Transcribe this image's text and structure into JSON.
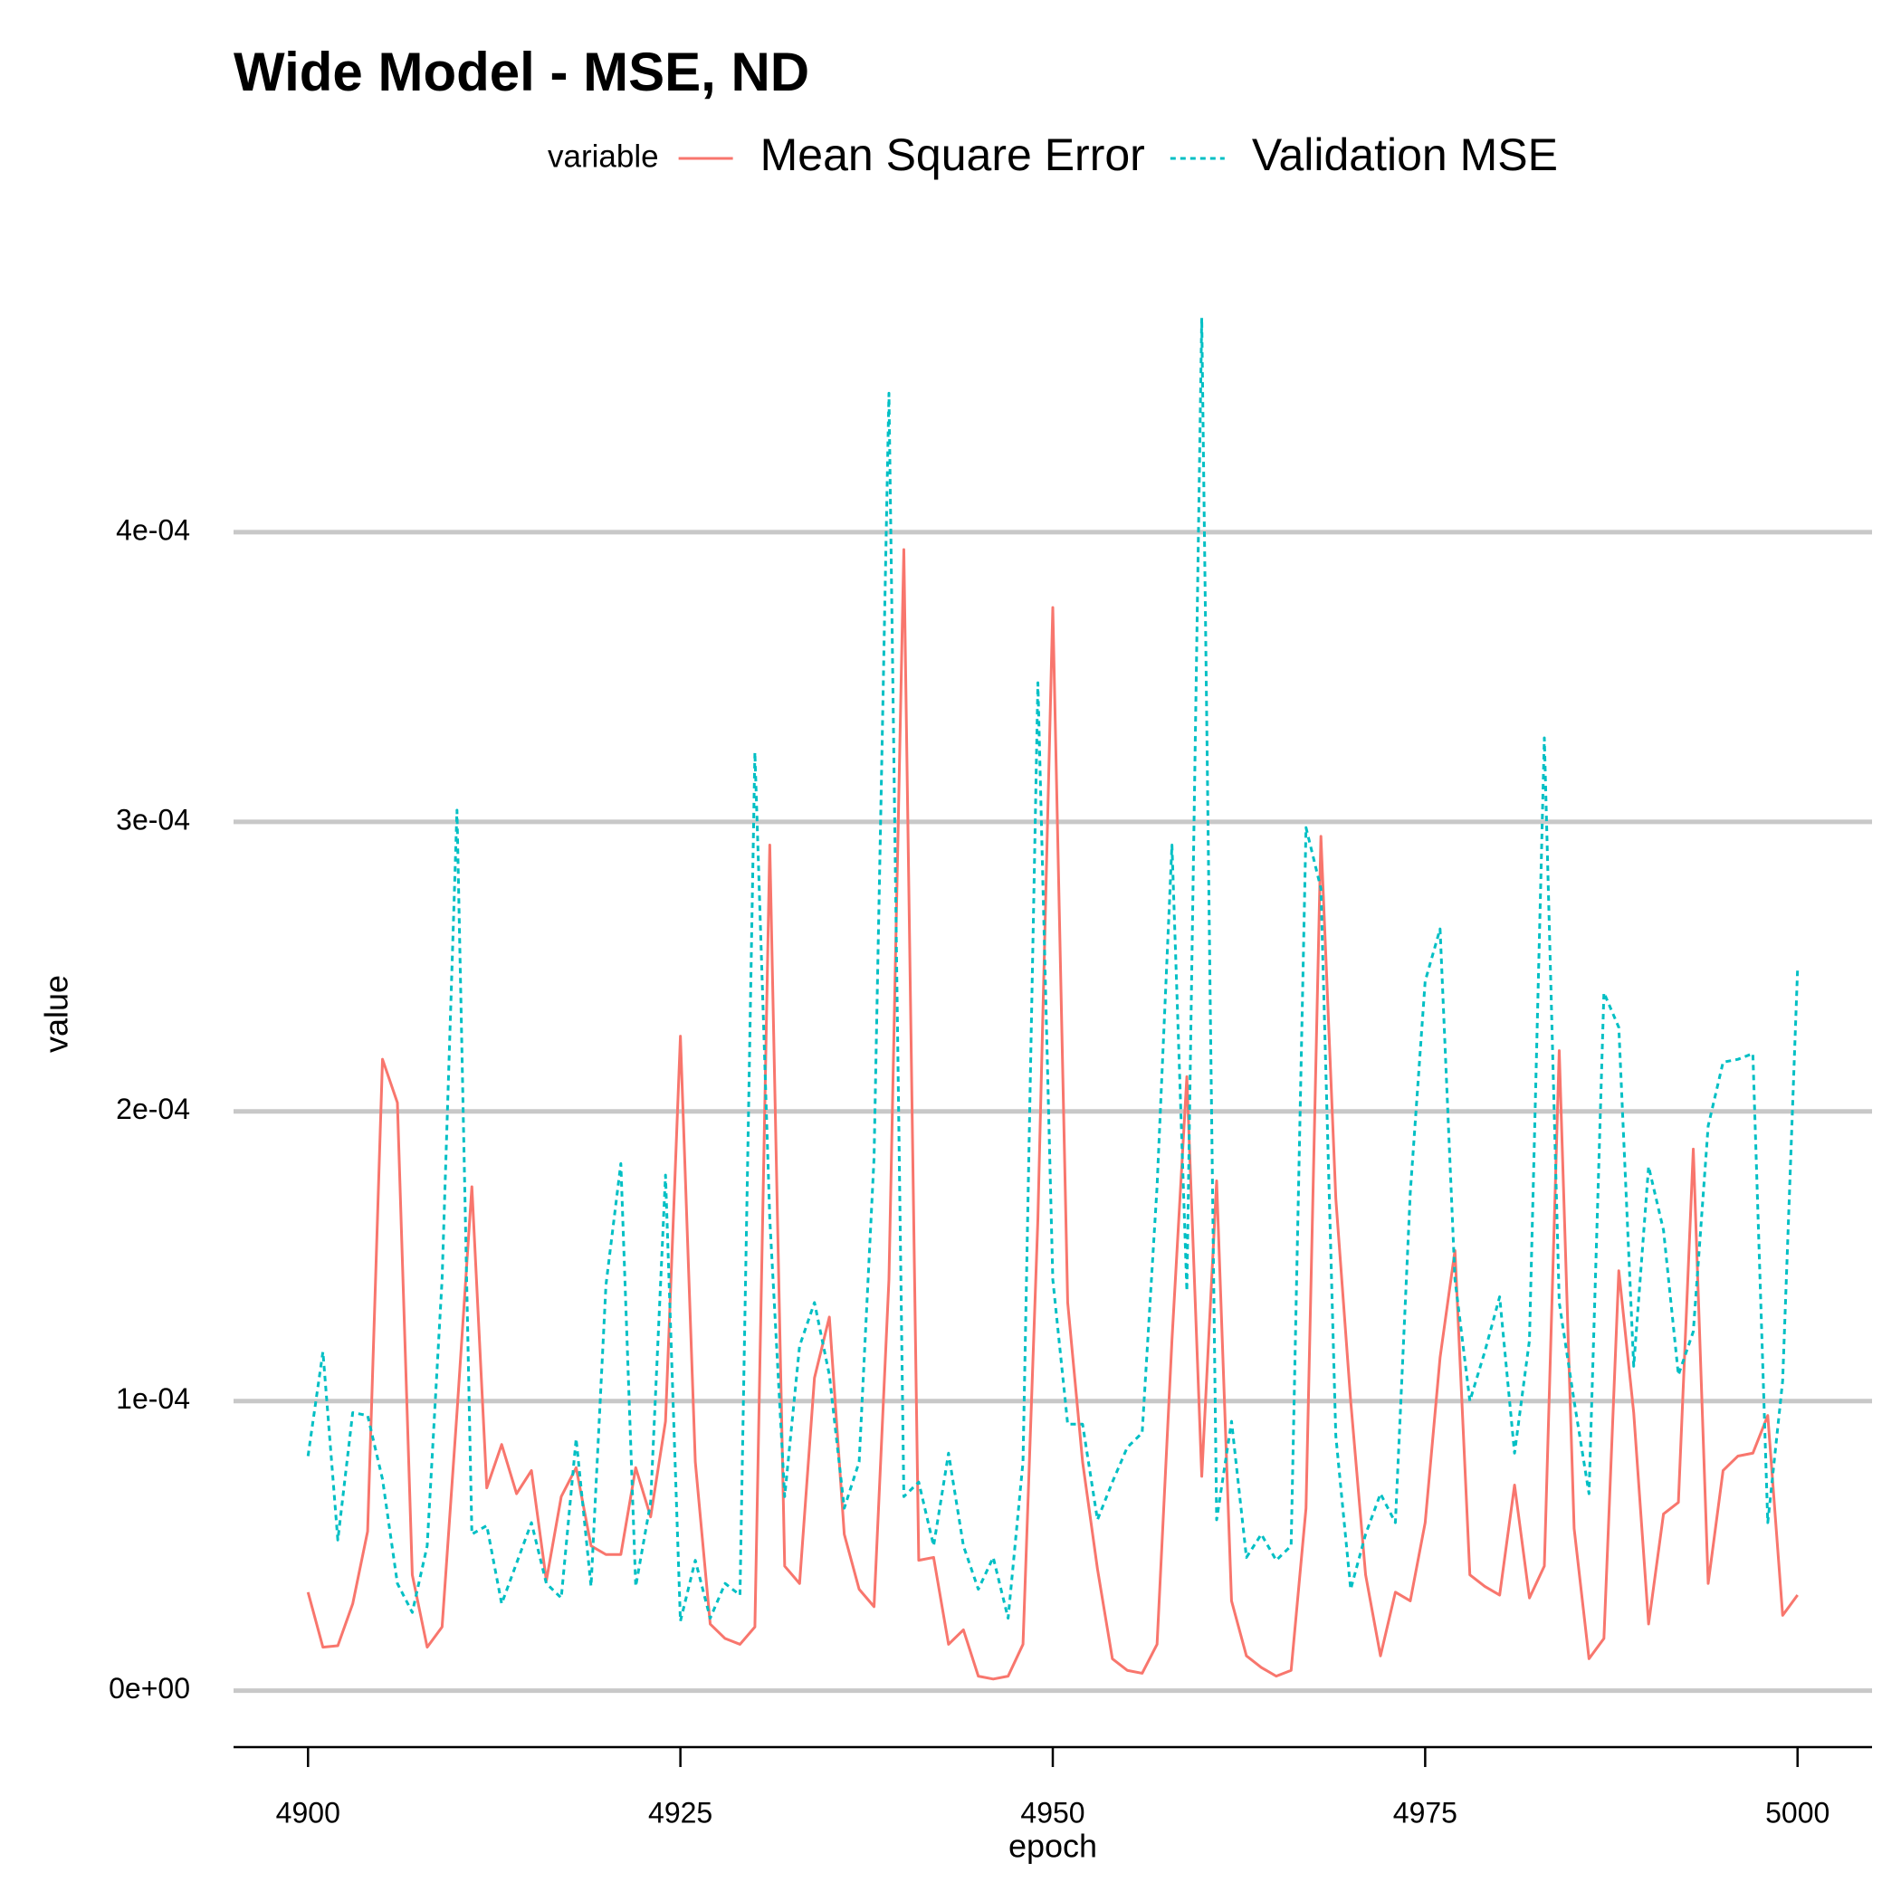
{
  "chart_data": {
    "type": "line",
    "title": "Wide Model - MSE, ND",
    "x_label": "epoch",
    "y_label": "value",
    "legend_title": "variable",
    "legend_position": "top",
    "x": [
      4900,
      4901,
      4902,
      4903,
      4904,
      4905,
      4906,
      4907,
      4908,
      4909,
      4910,
      4911,
      4912,
      4913,
      4914,
      4915,
      4916,
      4917,
      4918,
      4919,
      4920,
      4921,
      4922,
      4923,
      4924,
      4925,
      4926,
      4927,
      4928,
      4929,
      4930,
      4931,
      4932,
      4933,
      4934,
      4935,
      4936,
      4937,
      4938,
      4939,
      4940,
      4941,
      4942,
      4943,
      4944,
      4945,
      4946,
      4947,
      4948,
      4949,
      4950,
      4951,
      4952,
      4953,
      4954,
      4955,
      4956,
      4957,
      4958,
      4959,
      4960,
      4961,
      4962,
      4963,
      4964,
      4965,
      4966,
      4967,
      4968,
      4969,
      4970,
      4971,
      4972,
      4973,
      4974,
      4975,
      4976,
      4977,
      4978,
      4979,
      4980,
      4981,
      4982,
      4983,
      4984,
      4985,
      4986,
      4987,
      4988,
      4989,
      4990,
      4991,
      4992,
      4993,
      4994,
      4995,
      4996,
      4997,
      4998,
      4999,
      5000
    ],
    "series": [
      {
        "name": "Mean Square Error",
        "color": "#F8766D",
        "line_style": "solid",
        "values": [
          3.4e-05,
          1.5e-05,
          1.55e-05,
          3e-05,
          5.5e-05,
          0.000218,
          0.000203,
          4e-05,
          1.5e-05,
          2.2e-05,
          9.6e-05,
          0.000174,
          7e-05,
          8.5e-05,
          6.8e-05,
          7.6e-05,
          3.8e-05,
          6.7e-05,
          7.7e-05,
          5e-05,
          4.7e-05,
          4.7e-05,
          7.7e-05,
          6e-05,
          9.3e-05,
          0.000226,
          7.9e-05,
          2.3e-05,
          1.8e-05,
          1.6e-05,
          2.2e-05,
          0.000292,
          4.3e-05,
          3.7e-05,
          0.000108,
          0.000129,
          5.4e-05,
          3.5e-05,
          2.9e-05,
          0.000142,
          0.000394,
          4.5e-05,
          4.6e-05,
          1.6e-05,
          2.1e-05,
          5e-06,
          4e-06,
          5e-06,
          1.6e-05,
          0.000163,
          0.000374,
          0.000134,
          7.9e-05,
          4.2e-05,
          1.1e-05,
          7e-06,
          6e-06,
          1.6e-05,
          0.000121,
          0.000212,
          7.4e-05,
          0.000176,
          3.1e-05,
          1.2e-05,
          8e-06,
          5e-06,
          7e-06,
          6.3e-05,
          0.000295,
          0.00017,
          0.0001,
          4e-05,
          1.2e-05,
          3.4e-05,
          3.1e-05,
          5.8e-05,
          0.000115,
          0.000152,
          4e-05,
          3.6e-05,
          3.3e-05,
          7.1e-05,
          3.2e-05,
          4.3e-05,
          0.000221,
          5.6e-05,
          1.1e-05,
          1.8e-05,
          0.000145,
          9.6e-05,
          2.3e-05,
          6.1e-05,
          6.5e-05,
          0.000187,
          3.7e-05,
          7.6e-05,
          8.1e-05,
          8.2e-05,
          9.5e-05,
          2.6e-05,
          3.3e-05
        ]
      },
      {
        "name": "Validation MSE",
        "color": "#00BFC4",
        "line_style": "dotted",
        "values": [
          8.1e-05,
          0.000117,
          5.2e-05,
          9.6e-05,
          9.5e-05,
          7.3e-05,
          3.7e-05,
          2.7e-05,
          5e-05,
          0.000142,
          0.000304,
          5.4e-05,
          5.7e-05,
          3e-05,
          4.4e-05,
          5.8e-05,
          3.7e-05,
          3.2e-05,
          8.7e-05,
          3.6e-05,
          0.00014,
          0.000182,
          3.6e-05,
          6.5e-05,
          0.000178,
          2.4e-05,
          4.5e-05,
          2.5e-05,
          3.7e-05,
          3.3e-05,
          0.000324,
          0.000163,
          6.7e-05,
          0.000119,
          0.000134,
          0.000109,
          6.3e-05,
          7.9e-05,
          0.000184,
          0.000448,
          6.7e-05,
          7.2e-05,
          5e-05,
          8.2e-05,
          5e-05,
          3.5e-05,
          4.6e-05,
          2.5e-05,
          7.9e-05,
          0.000348,
          0.000142,
          9.2e-05,
          9.2e-05,
          5.9e-05,
          7.2e-05,
          8.4e-05,
          8.9e-05,
          0.000174,
          0.000292,
          0.000138,
          0.000474,
          5.9e-05,
          9.3e-05,
          4.6e-05,
          5.4e-05,
          4.5e-05,
          5e-05,
          0.000298,
          0.000277,
          8.8e-05,
          3.5e-05,
          5.4e-05,
          6.8e-05,
          5.8e-05,
          0.000172,
          0.000245,
          0.000263,
          0.000142,
          0.0001,
          0.000117,
          0.000136,
          8.2e-05,
          0.000121,
          0.000329,
          0.000134,
          0.0001,
          6.8e-05,
          0.000241,
          0.000229,
          0.000112,
          0.000181,
          0.000159,
          0.000109,
          0.000124,
          0.000195,
          0.000217,
          0.000218,
          0.00022,
          5.8e-05,
          0.000107,
          0.000249
        ]
      }
    ],
    "xlim": [
      4895,
      5005
    ],
    "xticks": [
      4900,
      4925,
      4950,
      4975,
      5000
    ],
    "ylim": [
      -1.95e-05,
      0.0004975
    ],
    "yticks": [
      {
        "value": 0,
        "label": "0e+00"
      },
      {
        "value": 0.0001,
        "label": "1e-04"
      },
      {
        "value": 0.0002,
        "label": "2e-04"
      },
      {
        "value": 0.0003,
        "label": "3e-04"
      },
      {
        "value": 0.0004,
        "label": "4e-04"
      }
    ],
    "grid": true
  }
}
